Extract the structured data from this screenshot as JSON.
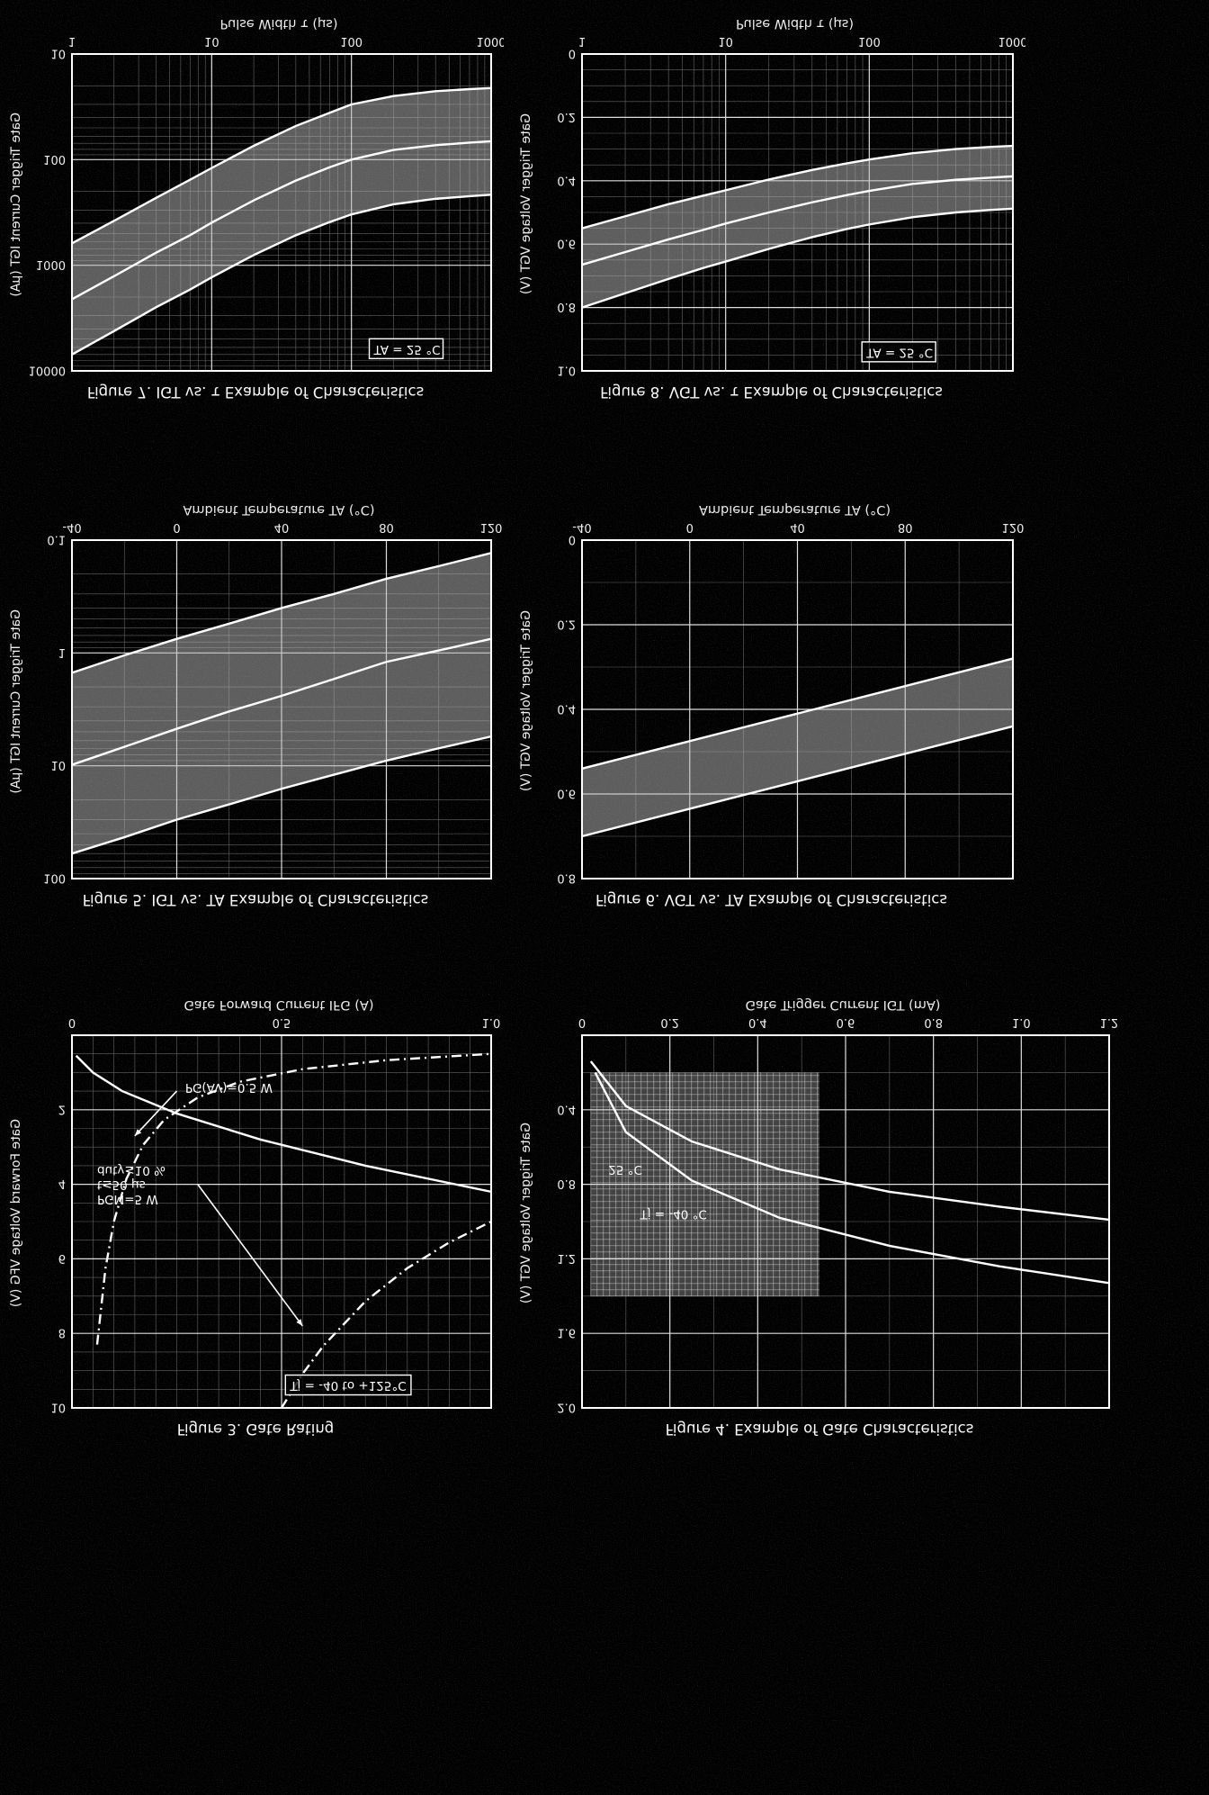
{
  "colors": {
    "background": "#000000",
    "foreground": "#ffffff",
    "grid_major": "#f5f5f5",
    "grid_minor": "#e8e8e8",
    "band_fill": "#b9b9b9"
  },
  "chart_data": [
    {
      "type": "line",
      "caption": "Figure 3. Gate Rating",
      "xlabel": "Gate Forward Current IFG (A)",
      "ylabel": "Gate Forward Voltage VFG (V)",
      "x": {
        "scale": "linear",
        "min": 0,
        "max": 1.0,
        "minor": 0.05,
        "ticks": [
          0,
          0.5,
          1.0
        ],
        "tick_labels": [
          "0",
          "0.5",
          "1.0"
        ]
      },
      "y": {
        "scale": "linear",
        "min": 0,
        "max": 10,
        "minor": 0.5,
        "ticks": [
          2,
          4,
          6,
          8,
          10
        ],
        "tick_labels": [
          "2",
          "4",
          "6",
          "8",
          "10"
        ]
      },
      "series": [
        {
          "name": "PGM = 5 W limit",
          "style": "dashdot",
          "points": [
            [
              0.5,
              10
            ],
            [
              0.55,
              9.09
            ],
            [
              0.6,
              8.33
            ],
            [
              0.7,
              7.14
            ],
            [
              0.8,
              6.25
            ],
            [
              0.9,
              5.56
            ],
            [
              1.0,
              5.0
            ]
          ]
        },
        {
          "name": "PG(AV) = 0.5 W limit",
          "style": "dashdot",
          "points": [
            [
              0.06,
              8.3
            ],
            [
              0.08,
              6.25
            ],
            [
              0.1,
              5.0
            ],
            [
              0.13,
              3.85
            ],
            [
              0.17,
              2.94
            ],
            [
              0.22,
              2.27
            ],
            [
              0.3,
              1.67
            ],
            [
              0.4,
              1.25
            ],
            [
              0.55,
              0.91
            ],
            [
              0.75,
              0.67
            ],
            [
              1.0,
              0.5
            ]
          ]
        },
        {
          "name": "forward characteristic",
          "style": "solid",
          "points": [
            [
              0.01,
              0.55
            ],
            [
              0.05,
              1.0
            ],
            [
              0.12,
              1.5
            ],
            [
              0.25,
              2.1
            ],
            [
              0.45,
              2.8
            ],
            [
              0.7,
              3.5
            ],
            [
              1.0,
              4.2
            ]
          ]
        }
      ],
      "annotations": [
        {
          "lines": [
            "PG(AV)=0.5 W"
          ],
          "fx": 0.27,
          "fy": 0.13,
          "arrow": [
            0.25,
            0.15,
            0.15,
            0.27
          ]
        },
        {
          "lines": [
            "PGM=5 W",
            "t≤50 μs",
            "duty≤10 %"
          ],
          "fx": 0.06,
          "fy": 0.43,
          "arrow": [
            0.3,
            0.4,
            0.55,
            0.78
          ]
        },
        {
          "lines": [
            "Tj = -40 to +125°C"
          ],
          "fx": 0.52,
          "fy": 0.93,
          "boxed": true
        }
      ]
    },
    {
      "type": "line",
      "caption": "Figure 4. Example of Gate Characteristics",
      "xlabel": "Gate Trigger Current IGT (mA)",
      "ylabel": "Gate Trigger Voltage VGT (V)",
      "x": {
        "scale": "linear",
        "min": 0,
        "max": 1.2,
        "minor": 0.1,
        "ticks": [
          0,
          0.2,
          0.4,
          0.6,
          0.8,
          1.0,
          1.2
        ],
        "tick_labels": [
          "0",
          "0.2",
          "0.4",
          "0.6",
          "0.8",
          "1.0",
          "1.2"
        ]
      },
      "y": {
        "scale": "linear",
        "min": 0,
        "max": 2.0,
        "minor": 0.2,
        "ticks": [
          0.4,
          0.8,
          1.2,
          1.6,
          2.0
        ],
        "tick_labels": [
          "0.4",
          "0.8",
          "1.2",
          "1.6",
          "2.0"
        ]
      },
      "region": {
        "x": [
          0.02,
          0.54
        ],
        "y": [
          0.2,
          1.4
        ]
      },
      "series": [
        {
          "name": "Tj = -40 °C",
          "style": "solid",
          "points": [
            [
              0.03,
              0.2
            ],
            [
              0.1,
              0.52
            ],
            [
              0.25,
              0.78
            ],
            [
              0.45,
              0.98
            ],
            [
              0.7,
              1.13
            ],
            [
              0.95,
              1.24
            ],
            [
              1.2,
              1.33
            ]
          ]
        },
        {
          "name": "25 °C",
          "style": "solid",
          "points": [
            [
              0.02,
              0.14
            ],
            [
              0.1,
              0.38
            ],
            [
              0.25,
              0.57
            ],
            [
              0.45,
              0.72
            ],
            [
              0.7,
              0.84
            ],
            [
              0.95,
              0.92
            ],
            [
              1.2,
              0.99
            ]
          ]
        }
      ],
      "annotations": [
        {
          "lines": [
            "25 °C"
          ],
          "fx": 0.05,
          "fy": 0.35
        },
        {
          "lines": [
            "Tj = -40 °C"
          ],
          "fx": 0.11,
          "fy": 0.47
        }
      ]
    },
    {
      "type": "line",
      "caption": "Figure 5. IGT vs. TA Example of Characteristics",
      "xlabel": "Ambient Temperature TA (°C)",
      "ylabel": "Gate Trigger Current IGT (μA)",
      "x": {
        "scale": "linear",
        "min": -40,
        "max": 120,
        "minor": 20,
        "ticks": [
          -40,
          0,
          40,
          80,
          120
        ],
        "tick_labels": [
          "-40",
          "0",
          "40",
          "80",
          "120"
        ]
      },
      "y": {
        "scale": "log",
        "min": 0.1,
        "max": 100,
        "ticks": [
          0.1,
          1,
          10,
          100
        ],
        "tick_labels": [
          "0.1",
          "1",
          "10",
          "100"
        ]
      },
      "bands": [
        {
          "upper": [
            [
              -40,
              60
            ],
            [
              -20,
              43
            ],
            [
              0,
              30
            ],
            [
              20,
              22
            ],
            [
              40,
              16
            ],
            [
              60,
              12
            ],
            [
              80,
              9
            ],
            [
              100,
              7
            ],
            [
              120,
              5.5
            ]
          ],
          "lower": [
            [
              -40,
              1.5
            ],
            [
              -20,
              1.05
            ],
            [
              0,
              0.75
            ],
            [
              20,
              0.55
            ],
            [
              40,
              0.4
            ],
            [
              60,
              0.3
            ],
            [
              80,
              0.22
            ],
            [
              100,
              0.17
            ],
            [
              120,
              0.13
            ]
          ]
        }
      ],
      "series": [
        {
          "name": "typ",
          "style": "solid",
          "points": [
            [
              -40,
              9.8
            ],
            [
              -20,
              6.8
            ],
            [
              0,
              4.7
            ],
            [
              20,
              3.3
            ],
            [
              40,
              2.4
            ],
            [
              60,
              1.7
            ],
            [
              80,
              1.2
            ],
            [
              100,
              0.95
            ],
            [
              120,
              0.75
            ]
          ]
        }
      ],
      "annotations": []
    },
    {
      "type": "line",
      "caption": "Figure 6. VGT vs. TA Example of Characteristics",
      "xlabel": "Ambient Temperature TA (°C)",
      "ylabel": "Gate Trigger Voltage VGT (V)",
      "x": {
        "scale": "linear",
        "min": -40,
        "max": 120,
        "minor": 20,
        "ticks": [
          -40,
          0,
          40,
          80,
          120
        ],
        "tick_labels": [
          "-40",
          "0",
          "40",
          "80",
          "120"
        ]
      },
      "y": {
        "scale": "linear",
        "min": 0,
        "max": 0.8,
        "minor": 0.1,
        "ticks": [
          0,
          0.2,
          0.4,
          0.6,
          0.8
        ],
        "tick_labels": [
          "0",
          "0.2",
          "0.4",
          "0.6",
          "0.8"
        ]
      },
      "bands": [
        {
          "upper": [
            [
              -40,
              0.7
            ],
            [
              0,
              0.635
            ],
            [
              40,
              0.57
            ],
            [
              80,
              0.505
            ],
            [
              120,
              0.44
            ]
          ],
          "lower": [
            [
              -40,
              0.54
            ],
            [
              0,
              0.475
            ],
            [
              40,
              0.41
            ],
            [
              80,
              0.345
            ],
            [
              120,
              0.28
            ]
          ]
        }
      ],
      "series": [],
      "annotations": []
    },
    {
      "type": "line",
      "caption": "Figure 7. IGT vs. τ Example of Characteristics",
      "xlabel": "Pulse Width τ (μs)",
      "ylabel": "Gate Trigger Current IGT (μA)",
      "x": {
        "scale": "log",
        "min": 1,
        "max": 1000,
        "ticks": [
          1,
          10,
          100,
          1000
        ],
        "tick_labels": [
          "1",
          "10",
          "100",
          "1000"
        ]
      },
      "y": {
        "scale": "log",
        "min": 10,
        "max": 10000,
        "ticks": [
          10,
          100,
          1000,
          10000
        ],
        "tick_labels": [
          "10",
          "100",
          "1000",
          "10000"
        ]
      },
      "bands": [
        {
          "upper": [
            [
              1,
              7000
            ],
            [
              2,
              4200
            ],
            [
              4,
              2500
            ],
            [
              7,
              1700
            ],
            [
              10,
              1300
            ],
            [
              20,
              800
            ],
            [
              40,
              520
            ],
            [
              70,
              390
            ],
            [
              100,
              330
            ],
            [
              200,
              265
            ],
            [
              400,
              235
            ],
            [
              700,
              222
            ],
            [
              1000,
              215
            ]
          ],
          "lower": [
            [
              1,
              620
            ],
            [
              2,
              380
            ],
            [
              4,
              230
            ],
            [
              7,
              155
            ],
            [
              10,
              120
            ],
            [
              20,
              74
            ],
            [
              40,
              48
            ],
            [
              70,
              36
            ],
            [
              100,
              30
            ],
            [
              200,
              25
            ],
            [
              400,
              22.5
            ],
            [
              700,
              21.5
            ],
            [
              1000,
              21
            ]
          ]
        }
      ],
      "series": [
        {
          "name": "typ",
          "style": "solid",
          "points": [
            [
              1,
              2100
            ],
            [
              2,
              1270
            ],
            [
              4,
              760
            ],
            [
              7,
              520
            ],
            [
              10,
              395
            ],
            [
              20,
              243
            ],
            [
              40,
              158
            ],
            [
              70,
              118
            ],
            [
              100,
              100
            ],
            [
              200,
              81
            ],
            [
              400,
              73
            ],
            [
              700,
              69
            ],
            [
              1000,
              67
            ]
          ]
        }
      ],
      "annotations": [
        {
          "lines": [
            "TA = 25 °C"
          ],
          "fx": 0.72,
          "fy": 0.92,
          "boxed": true
        }
      ]
    },
    {
      "type": "line",
      "caption": "Figure 8. VGT vs. τ Example of Characteristics",
      "xlabel": "Pulse Width τ (μs)",
      "ylabel": "Gate Trigger Voltage VGT (V)",
      "x": {
        "scale": "log",
        "min": 1,
        "max": 1000,
        "ticks": [
          1,
          10,
          100,
          1000
        ],
        "tick_labels": [
          "1",
          "10",
          "100",
          "1000"
        ]
      },
      "y": {
        "scale": "linear",
        "min": 0,
        "max": 1.0,
        "minor": 0.05,
        "ticks": [
          0,
          0.2,
          0.4,
          0.6,
          0.8,
          1.0
        ],
        "tick_labels": [
          "0",
          "0.2",
          "0.4",
          "0.6",
          "0.8",
          "1.0"
        ]
      },
      "bands": [
        {
          "upper": [
            [
              1,
              0.8
            ],
            [
              2,
              0.755
            ],
            [
              4,
              0.71
            ],
            [
              7,
              0.675
            ],
            [
              10,
              0.655
            ],
            [
              20,
              0.615
            ],
            [
              40,
              0.578
            ],
            [
              70,
              0.552
            ],
            [
              100,
              0.538
            ],
            [
              200,
              0.515
            ],
            [
              400,
              0.5
            ],
            [
              700,
              0.492
            ],
            [
              1000,
              0.488
            ]
          ],
          "lower": [
            [
              1,
              0.55
            ],
            [
              2,
              0.512
            ],
            [
              4,
              0.474
            ],
            [
              7,
              0.447
            ],
            [
              10,
              0.43
            ],
            [
              20,
              0.396
            ],
            [
              40,
              0.366
            ],
            [
              70,
              0.345
            ],
            [
              100,
              0.333
            ],
            [
              200,
              0.313
            ],
            [
              400,
              0.3
            ],
            [
              700,
              0.293
            ],
            [
              1000,
              0.29
            ]
          ]
        }
      ],
      "series": [
        {
          "name": "typ",
          "style": "solid",
          "points": [
            [
              1,
              0.665
            ],
            [
              2,
              0.625
            ],
            [
              4,
              0.585
            ],
            [
              7,
              0.555
            ],
            [
              10,
              0.535
            ],
            [
              20,
              0.5
            ],
            [
              40,
              0.468
            ],
            [
              70,
              0.445
            ],
            [
              100,
              0.432
            ],
            [
              200,
              0.41
            ],
            [
              400,
              0.397
            ],
            [
              700,
              0.39
            ],
            [
              1000,
              0.386
            ]
          ]
        }
      ],
      "annotations": [
        {
          "lines": [
            "TA = 25 °C"
          ],
          "fx": 0.66,
          "fy": 0.93,
          "boxed": true
        }
      ]
    }
  ]
}
